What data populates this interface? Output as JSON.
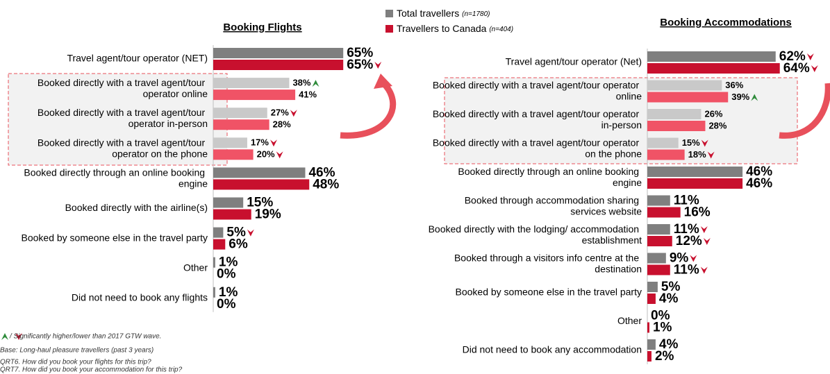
{
  "chart_data": [
    {
      "type": "bar",
      "orientation": "horizontal",
      "title": "Booking Flights",
      "categories": [
        "Travel agent/tour operator (NET)",
        "Booked directly with a travel agent/tour operator online",
        "Booked directly with a travel agent/tour operator in-person",
        "Booked directly with a travel agent/tour operator on the phone",
        "Booked directly through an online booking engine",
        "Booked directly with the airline(s)",
        "Booked by someone else in the travel party",
        "Other",
        "Did not need to book any flights"
      ],
      "series": [
        {
          "name": "Total travellers",
          "name_note": "(n=1780)",
          "color": "#7f7f7f",
          "colors": [
            "#7f7f7f",
            "#c9c9c9",
            "#c9c9c9",
            "#c9c9c9",
            "#7f7f7f",
            "#7f7f7f",
            "#7f7f7f",
            "#7f7f7f",
            "#7f7f7f"
          ],
          "values": [
            65,
            38,
            27,
            17,
            46,
            15,
            5,
            1,
            1
          ],
          "value_labels": [
            "65%",
            "38%",
            "27%",
            "17%",
            "46%",
            "15%",
            "5%",
            "1%",
            "1%"
          ],
          "significance": [
            null,
            "higher",
            "lower",
            "lower",
            null,
            null,
            "lower",
            null,
            null
          ]
        },
        {
          "name": "Travellers to Canada",
          "name_note": "(n=404)",
          "color": "#c8102e",
          "colors": [
            "#c8102e",
            "#f05366",
            "#f05366",
            "#f05366",
            "#c8102e",
            "#c8102e",
            "#c8102e",
            "#c8102e",
            "#c8102e"
          ],
          "values": [
            65,
            41,
            28,
            20,
            48,
            19,
            6,
            0,
            0
          ],
          "value_labels": [
            "65%",
            "41%",
            "28%",
            "20%",
            "48%",
            "19%",
            "6%",
            "0%",
            "0%"
          ],
          "significance": [
            "lower",
            null,
            null,
            "lower",
            null,
            null,
            null,
            null,
            null
          ]
        }
      ],
      "xlim": [
        0,
        100
      ]
    },
    {
      "type": "bar",
      "orientation": "horizontal",
      "title": "Booking Accommodations",
      "categories": [
        "Travel agent/tour operator (Net)",
        "Booked directly with a travel agent/tour operator online",
        "Booked directly with a travel agent/tour operator in-person",
        "Booked directly with a travel agent/tour operator on the phone",
        "Booked directly through an online booking engine",
        "Booked through accommodation sharing services website",
        "Booked directly with the lodging/ accommodation establishment",
        "Booked through a visitors info centre at the destination",
        "Booked by someone else in the travel party",
        "Other",
        "Did not need to book any accommodation"
      ],
      "series": [
        {
          "name": "Total travellers",
          "color": "#7f7f7f",
          "colors": [
            "#7f7f7f",
            "#c9c9c9",
            "#c9c9c9",
            "#c9c9c9",
            "#7f7f7f",
            "#7f7f7f",
            "#7f7f7f",
            "#7f7f7f",
            "#7f7f7f",
            "#7f7f7f",
            "#7f7f7f"
          ],
          "values": [
            62,
            36,
            26,
            15,
            46,
            11,
            11,
            9,
            5,
            0,
            4
          ],
          "value_labels": [
            "62%",
            "36%",
            "26%",
            "15%",
            "46%",
            "11%",
            "11%",
            "9%",
            "5%",
            "0%",
            "4%"
          ],
          "significance": [
            "lower",
            null,
            null,
            "lower",
            null,
            null,
            "lower",
            "lower",
            null,
            null,
            null
          ]
        },
        {
          "name": "Travellers to Canada",
          "color": "#c8102e",
          "colors": [
            "#c8102e",
            "#f05366",
            "#f05366",
            "#f05366",
            "#c8102e",
            "#c8102e",
            "#c8102e",
            "#c8102e",
            "#c8102e",
            "#c8102e",
            "#c8102e"
          ],
          "values": [
            64,
            39,
            28,
            18,
            46,
            16,
            12,
            11,
            4,
            1,
            2
          ],
          "value_labels": [
            "64%",
            "39%",
            "28%",
            "18%",
            "46%",
            "16%",
            "12%",
            "11%",
            "4%",
            "1%",
            "2%"
          ],
          "significance": [
            "lower",
            "higher",
            null,
            "lower",
            null,
            null,
            "lower",
            "lower",
            null,
            null,
            null
          ]
        }
      ],
      "xlim": [
        0,
        100
      ]
    }
  ],
  "footnotes": [
    "/ Significantly higher/lower than 2017 GTW wave.",
    "Base: Long-haul pleasure travellers (past 3 years)",
    "QRT6. How did you book your flights for this trip?",
    "QRT7. How did you book your accommodation for this trip?"
  ]
}
